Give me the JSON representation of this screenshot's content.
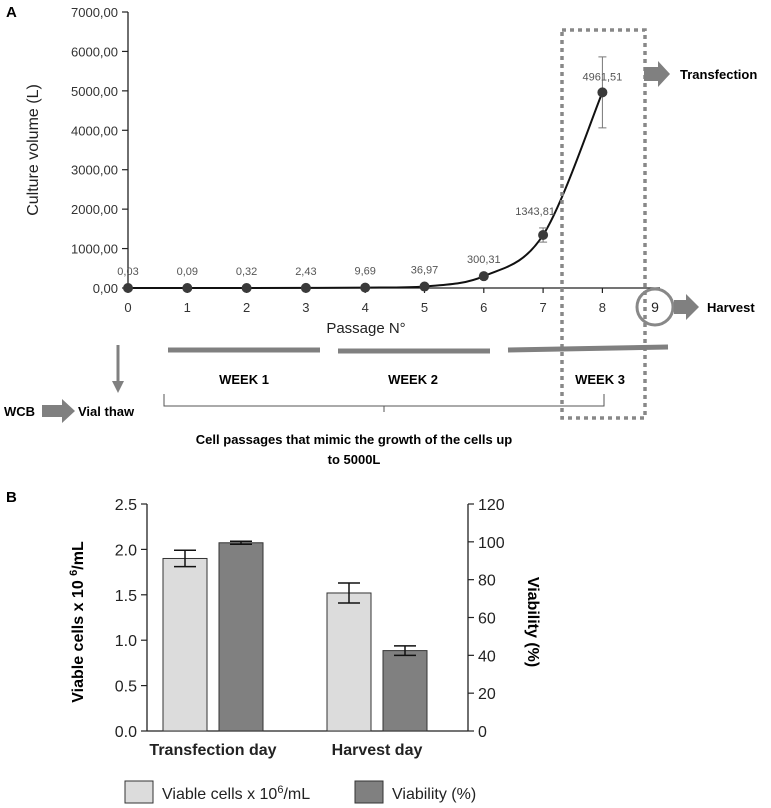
{
  "panel_a": {
    "label": "A",
    "annotations": {
      "transfection": "Transfection",
      "harvest": "Harvest",
      "harvest_passage": "9",
      "wcb": "WCB",
      "vial_thaw": "Vial thaw",
      "brace_caption_line1": "Cell passages that mimic  the growth of the cells up",
      "brace_caption_line2": "to 5000L"
    },
    "weeks": [
      "WEEK 1",
      "WEEK 2",
      "WEEK 3"
    ]
  },
  "panel_b": {
    "label": "B",
    "legend": {
      "viable_prefix": "Viable cells x 10",
      "viable_sup": "6",
      "viable_suffix": "/mL",
      "viability": "Viability (%)"
    },
    "ylabel_left_prefix": "Viable cells x 10 ",
    "ylabel_left_sup": "6",
    "ylabel_left_suffix": "/mL",
    "ylabel_right": "Viability (%)"
  },
  "chart_data": [
    {
      "type": "line",
      "title": "",
      "xlabel": "Passage N°",
      "ylabel": "Culture volume (L)",
      "x": [
        0,
        1,
        2,
        3,
        4,
        5,
        6,
        7,
        8
      ],
      "x_ticks": [
        "0",
        "1",
        "2",
        "3",
        "4",
        "5",
        "6",
        "7",
        "8"
      ],
      "y": [
        0.03,
        0.09,
        0.32,
        2.43,
        9.69,
        36.97,
        300.31,
        1343.81,
        4961.51
      ],
      "data_labels": [
        "0,03",
        "0,09",
        "0,32",
        "2,43",
        "9,69",
        "36,97",
        "300,31",
        "1343,81",
        "4961,51"
      ],
      "error": [
        0,
        0,
        0,
        0,
        0,
        0,
        0,
        180,
        900
      ],
      "y_ticks": [
        "0,00",
        "1000,00",
        "2000,00",
        "3000,00",
        "4000,00",
        "5000,00",
        "6000,00",
        "7000,00"
      ],
      "xlim": [
        0,
        9
      ],
      "ylim": [
        0,
        7000
      ],
      "grid": false
    },
    {
      "type": "bar",
      "title": "",
      "categories": [
        "Transfection day",
        "Harvest day"
      ],
      "series": [
        {
          "name": "Viable cells x 10^6/mL",
          "axis": "left",
          "color": "#dcdcdc",
          "values": [
            1.9,
            1.52
          ],
          "error": [
            0.09,
            0.11
          ]
        },
        {
          "name": "Viability (%)",
          "axis": "right",
          "color": "#808080",
          "values": [
            99.5,
            42.5
          ],
          "error": [
            0.8,
            2.5
          ]
        }
      ],
      "y_left_ticks": [
        "0.0",
        "0.5",
        "1.0",
        "1.5",
        "2.0",
        "2.5"
      ],
      "y_left_lim": [
        0,
        2.5
      ],
      "y_right_ticks": [
        "0",
        "20",
        "40",
        "60",
        "80",
        "100",
        "120"
      ],
      "y_right_lim": [
        0,
        120
      ],
      "legend_position": "bottom"
    }
  ]
}
